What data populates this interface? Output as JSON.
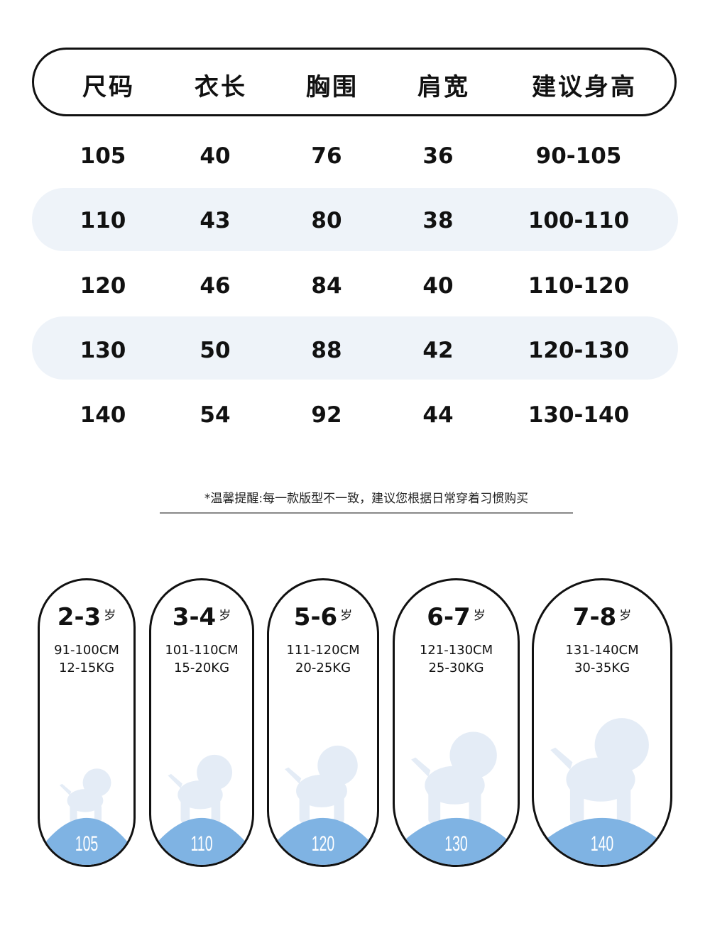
{
  "table": {
    "headers": [
      "尺码",
      "衣长",
      "胸围",
      "肩宽",
      "建议身高"
    ],
    "rows": [
      [
        "105",
        "40",
        "76",
        "36",
        "90-105"
      ],
      [
        "110",
        "43",
        "80",
        "38",
        "100-110"
      ],
      [
        "120",
        "46",
        "84",
        "40",
        "110-120"
      ],
      [
        "130",
        "50",
        "88",
        "42",
        "120-130"
      ],
      [
        "140",
        "54",
        "92",
        "44",
        "130-140"
      ]
    ]
  },
  "note": "*温馨提醒:每一款版型不一致，建议您根据日常穿着习惯购买",
  "colors": {
    "band": "#eef3f9",
    "ground": "#7fb3e3",
    "silhouette": "#e4ecf6"
  },
  "cards": [
    {
      "age": "2-3",
      "unit": "岁",
      "height": "91-100CM",
      "weight": "12-15KG",
      "size": "105",
      "icon": "small-dog-silhouette"
    },
    {
      "age": "3-4",
      "unit": "岁",
      "height": "101-110CM",
      "weight": "15-20KG",
      "size": "110",
      "icon": "dog-silhouette"
    },
    {
      "age": "5-6",
      "unit": "岁",
      "height": "111-120CM",
      "weight": "20-25KG",
      "size": "120",
      "icon": "dog-silhouette"
    },
    {
      "age": "6-7",
      "unit": "岁",
      "height": "121-130CM",
      "weight": "25-30KG",
      "size": "130",
      "icon": "dog-silhouette"
    },
    {
      "age": "7-8",
      "unit": "岁",
      "height": "131-140CM",
      "weight": "30-35KG",
      "size": "140",
      "icon": "large-dog-silhouette"
    }
  ]
}
